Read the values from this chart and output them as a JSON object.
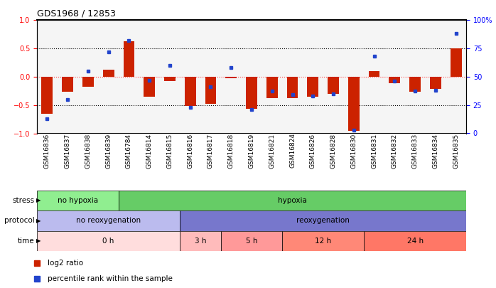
{
  "title": "GDS1968 / 12853",
  "samples": [
    "GSM16836",
    "GSM16837",
    "GSM16838",
    "GSM16839",
    "GSM16784",
    "GSM16814",
    "GSM16815",
    "GSM16816",
    "GSM16817",
    "GSM16818",
    "GSM16819",
    "GSM16821",
    "GSM16824",
    "GSM16826",
    "GSM16828",
    "GSM16830",
    "GSM16831",
    "GSM16832",
    "GSM16833",
    "GSM16834",
    "GSM16835"
  ],
  "log2ratio": [
    -0.65,
    -0.27,
    -0.18,
    0.12,
    0.62,
    -0.35,
    -0.08,
    -0.52,
    -0.48,
    -0.03,
    -0.57,
    -0.38,
    -0.38,
    -0.35,
    -0.3,
    -0.95,
    0.1,
    -0.12,
    -0.27,
    -0.22,
    0.5
  ],
  "percentile": [
    13,
    30,
    55,
    72,
    82,
    47,
    60,
    23,
    41,
    58,
    21,
    37,
    34,
    33,
    35,
    3,
    68,
    46,
    37,
    38,
    88
  ],
  "stress_groups": [
    {
      "label": "no hypoxia",
      "start": 0,
      "end": 4,
      "color": "#90EE90"
    },
    {
      "label": "hypoxia",
      "start": 4,
      "end": 21,
      "color": "#66CC66"
    }
  ],
  "protocol_groups": [
    {
      "label": "no reoxygenation",
      "start": 0,
      "end": 7,
      "color": "#BBBBEE"
    },
    {
      "label": "reoxygenation",
      "start": 7,
      "end": 21,
      "color": "#7777CC"
    }
  ],
  "time_groups": [
    {
      "label": "0 h",
      "start": 0,
      "end": 7,
      "color": "#FFDDDD"
    },
    {
      "label": "3 h",
      "start": 7,
      "end": 9,
      "color": "#FFBBBB"
    },
    {
      "label": "5 h",
      "start": 9,
      "end": 12,
      "color": "#FF9999"
    },
    {
      "label": "12 h",
      "start": 12,
      "end": 16,
      "color": "#FF8877"
    },
    {
      "label": "24 h",
      "start": 16,
      "end": 21,
      "color": "#FF7766"
    }
  ],
  "ylim": [
    -1.0,
    1.0
  ],
  "yticks_left": [
    -1.0,
    -0.5,
    0.0,
    0.5,
    1.0
  ],
  "yticks_right_vals": [
    0,
    25,
    50,
    75,
    100
  ],
  "yticks_right_labels": [
    "0",
    "25",
    "50",
    "75",
    "100%"
  ],
  "bar_color": "#CC2200",
  "dot_color": "#2244CC",
  "background_color": "#FFFFFF"
}
